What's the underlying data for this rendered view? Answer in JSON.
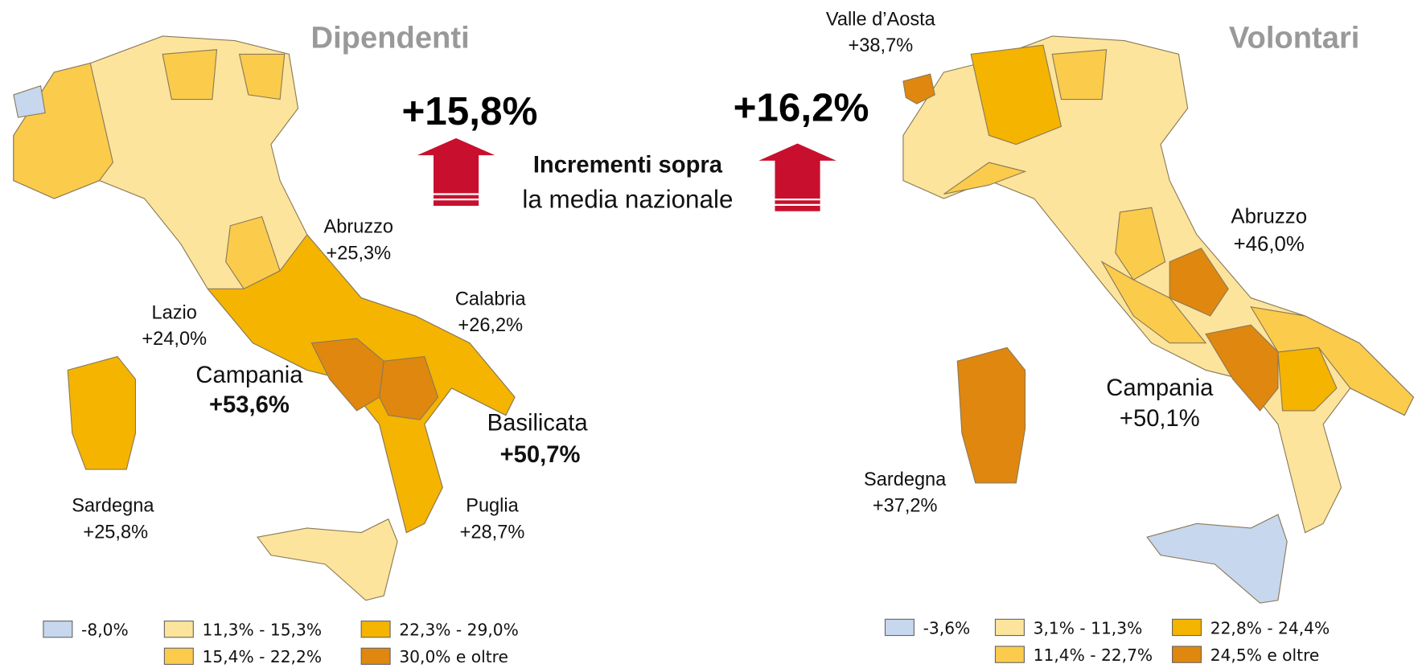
{
  "center": {
    "line1": "Incrementi sopra",
    "line2": "la media nazionale"
  },
  "maps": [
    {
      "title": "Dipendenti",
      "total": "+15,8%",
      "annotations": [
        {
          "region": "Abruzzo",
          "value": "+25,3%"
        },
        {
          "region": "Calabria",
          "value": "+26,2%"
        },
        {
          "region": "Lazio",
          "value": "+24,0%"
        },
        {
          "region": "Campania",
          "value": "+53,6%"
        },
        {
          "region": "Basilicata",
          "value": "+50,7%"
        },
        {
          "region": "Sardegna",
          "value": "+25,8%"
        },
        {
          "region": "Puglia",
          "value": "+28,7%"
        }
      ],
      "legend": [
        {
          "label": "-8,0%",
          "color": "#c6d7ee"
        },
        {
          "label": "11,3% - 15,3%",
          "color": "#fde49c"
        },
        {
          "label": "15,4% - 22,2%",
          "color": "#fbcb4c"
        },
        {
          "label": "22,3% - 29,0%",
          "color": "#f5b400"
        },
        {
          "label": "30,0% e oltre",
          "color": "#e0870f"
        }
      ]
    },
    {
      "title": "Volontari",
      "total": "+16,2%",
      "annotations": [
        {
          "region": "Valle d’Aosta",
          "value": "+38,7%"
        },
        {
          "region": "Abruzzo",
          "value": "+46,0%"
        },
        {
          "region": "Campania",
          "value": "+50,1%"
        },
        {
          "region": "Sardegna",
          "value": "+37,2%"
        }
      ],
      "legend": [
        {
          "label": "-3,6%",
          "color": "#c6d7ee"
        },
        {
          "label": "3,1% - 11,3%",
          "color": "#fde49c"
        },
        {
          "label": "11,4% - 22,7%",
          "color": "#fbcb4c"
        },
        {
          "label": "22,8% - 24,4%",
          "color": "#f5b400"
        },
        {
          "label": "24,5% e oltre",
          "color": "#e0870f"
        }
      ]
    }
  ]
}
